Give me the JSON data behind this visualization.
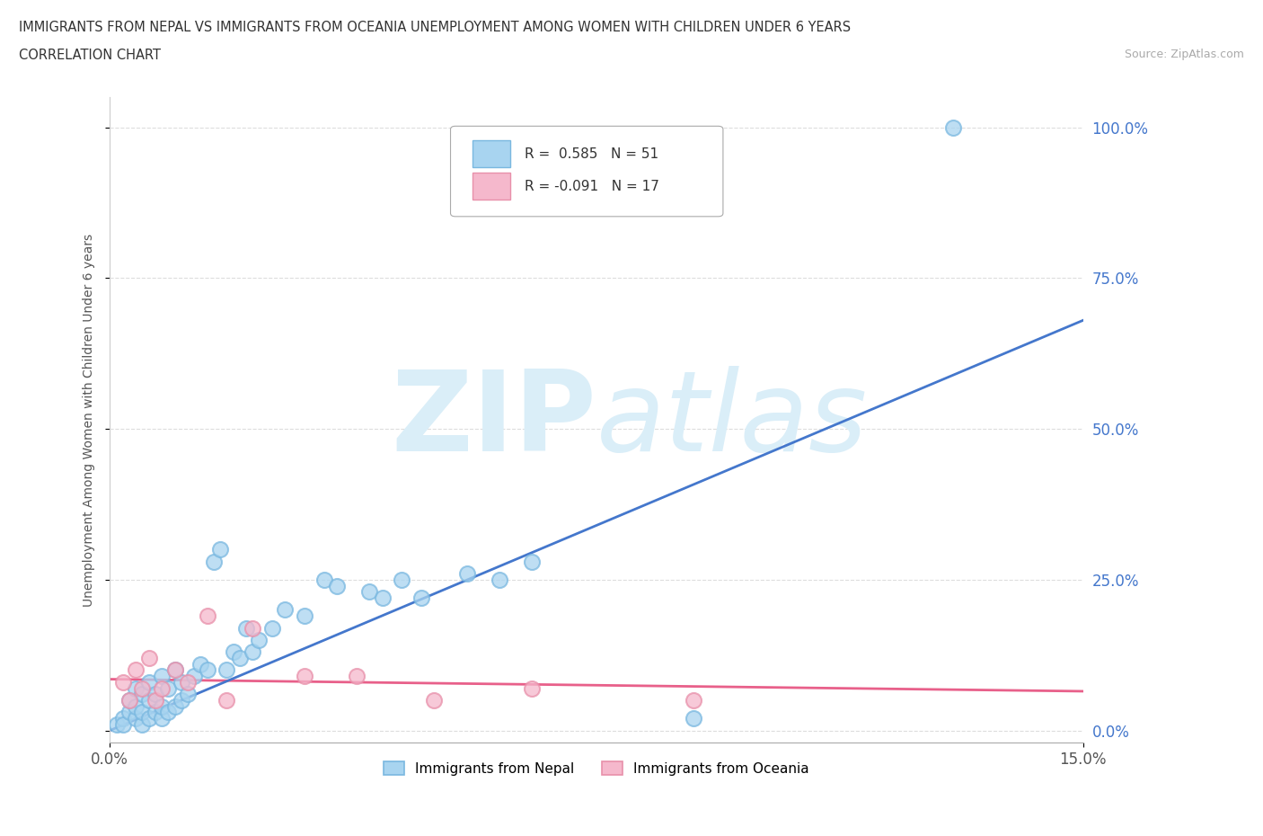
{
  "title_line1": "IMMIGRANTS FROM NEPAL VS IMMIGRANTS FROM OCEANIA UNEMPLOYMENT AMONG WOMEN WITH CHILDREN UNDER 6 YEARS",
  "title_line2": "CORRELATION CHART",
  "source_text": "Source: ZipAtlas.com",
  "ylabel": "Unemployment Among Women with Children Under 6 years",
  "xlim": [
    0.0,
    0.15
  ],
  "ylim": [
    -0.02,
    1.05
  ],
  "xtick_labels": [
    "0.0%",
    "15.0%"
  ],
  "ytick_values": [
    0.0,
    0.25,
    0.5,
    0.75,
    1.0
  ],
  "ytick_labels": [
    "0.0%",
    "25.0%",
    "50.0%",
    "75.0%",
    "100.0%"
  ],
  "nepal_R": 0.585,
  "nepal_N": 51,
  "oceania_R": -0.091,
  "oceania_N": 17,
  "nepal_color": "#a8d4f0",
  "oceania_color": "#f5b8cc",
  "nepal_edge_color": "#7ab8e0",
  "oceania_edge_color": "#e890aa",
  "nepal_line_color": "#4477cc",
  "oceania_line_color": "#e8608a",
  "background_color": "#ffffff",
  "watermark_color": "#daeef8",
  "grid_color": "#dddddd",
  "title_color": "#333333",
  "tick_color": "#4477cc",
  "nepal_scatter_x": [
    0.001,
    0.002,
    0.002,
    0.003,
    0.003,
    0.004,
    0.004,
    0.004,
    0.005,
    0.005,
    0.005,
    0.006,
    0.006,
    0.006,
    0.007,
    0.007,
    0.008,
    0.008,
    0.008,
    0.009,
    0.009,
    0.01,
    0.01,
    0.011,
    0.011,
    0.012,
    0.013,
    0.014,
    0.015,
    0.016,
    0.017,
    0.018,
    0.019,
    0.02,
    0.021,
    0.022,
    0.023,
    0.025,
    0.027,
    0.03,
    0.033,
    0.035,
    0.04,
    0.042,
    0.045,
    0.048,
    0.055,
    0.06,
    0.065,
    0.09,
    0.13
  ],
  "nepal_scatter_y": [
    0.01,
    0.02,
    0.01,
    0.03,
    0.05,
    0.02,
    0.04,
    0.07,
    0.01,
    0.03,
    0.06,
    0.02,
    0.05,
    0.08,
    0.03,
    0.06,
    0.02,
    0.04,
    0.09,
    0.03,
    0.07,
    0.04,
    0.1,
    0.05,
    0.08,
    0.06,
    0.09,
    0.11,
    0.1,
    0.28,
    0.3,
    0.1,
    0.13,
    0.12,
    0.17,
    0.13,
    0.15,
    0.17,
    0.2,
    0.19,
    0.25,
    0.24,
    0.23,
    0.22,
    0.25,
    0.22,
    0.26,
    0.25,
    0.28,
    0.02,
    1.0
  ],
  "oceania_scatter_x": [
    0.002,
    0.003,
    0.004,
    0.005,
    0.006,
    0.007,
    0.008,
    0.01,
    0.012,
    0.015,
    0.018,
    0.022,
    0.03,
    0.038,
    0.05,
    0.065,
    0.09
  ],
  "oceania_scatter_y": [
    0.08,
    0.05,
    0.1,
    0.07,
    0.12,
    0.05,
    0.07,
    0.1,
    0.08,
    0.19,
    0.05,
    0.17,
    0.09,
    0.09,
    0.05,
    0.07,
    0.05
  ],
  "nepal_trend_x": [
    0.0,
    0.15
  ],
  "nepal_trend_y": [
    0.0,
    0.68
  ],
  "oceania_trend_x": [
    0.0,
    0.15
  ],
  "oceania_trend_y": [
    0.085,
    0.065
  ]
}
